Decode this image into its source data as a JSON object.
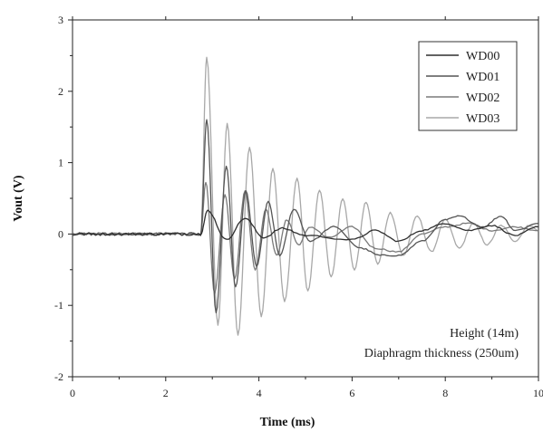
{
  "chart_data": {
    "type": "line",
    "title": "",
    "xlabel": "Time (ms)",
    "ylabel": "Vout (V)",
    "xlim": [
      0,
      10
    ],
    "ylim": [
      -2,
      3
    ],
    "xticks": [
      "0",
      "2",
      "4",
      "6",
      "8",
      "10"
    ],
    "yticks": [
      "-2",
      "-1",
      "0",
      "1",
      "2",
      "3"
    ],
    "grid": false,
    "legend_position": "top-right",
    "series": [
      {
        "name": "WD00",
        "color": "#2f2f2f",
        "peaks": [
          [
            2.9,
            0.33
          ],
          [
            3.3,
            -0.08
          ],
          [
            3.7,
            0.22
          ],
          [
            4.1,
            -0.05
          ],
          [
            4.5,
            0.08
          ],
          [
            5.0,
            -0.02
          ],
          [
            6.0,
            -0.08
          ],
          [
            6.5,
            0.05
          ],
          [
            7.0,
            -0.1
          ],
          [
            7.5,
            0.05
          ],
          [
            8.0,
            0.15
          ],
          [
            8.5,
            0.05
          ],
          [
            9.0,
            0.12
          ],
          [
            9.5,
            -0.02
          ],
          [
            10.0,
            0.1
          ]
        ]
      },
      {
        "name": "WD01",
        "color": "#555555",
        "peaks": [
          [
            2.88,
            1.6
          ],
          [
            3.08,
            -1.1
          ],
          [
            3.3,
            0.95
          ],
          [
            3.5,
            -0.75
          ],
          [
            3.72,
            0.6
          ],
          [
            3.95,
            -0.45
          ],
          [
            4.2,
            0.45
          ],
          [
            4.45,
            -0.3
          ],
          [
            4.75,
            0.35
          ],
          [
            5.1,
            -0.1
          ],
          [
            5.6,
            0.1
          ],
          [
            6.2,
            -0.2
          ],
          [
            6.6,
            -0.3
          ],
          [
            7.0,
            -0.3
          ],
          [
            7.5,
            -0.1
          ],
          [
            8.0,
            0.2
          ],
          [
            8.3,
            0.25
          ],
          [
            8.8,
            0.1
          ],
          [
            9.2,
            0.25
          ],
          [
            9.5,
            0.05
          ],
          [
            10.0,
            0.15
          ]
        ]
      },
      {
        "name": "WD02",
        "color": "#7a7a7a",
        "peaks": [
          [
            2.86,
            0.72
          ],
          [
            3.05,
            -0.82
          ],
          [
            3.27,
            0.55
          ],
          [
            3.48,
            -0.62
          ],
          [
            3.7,
            0.6
          ],
          [
            3.92,
            -0.5
          ],
          [
            4.15,
            0.35
          ],
          [
            4.38,
            -0.3
          ],
          [
            4.6,
            0.2
          ],
          [
            4.85,
            -0.15
          ],
          [
            5.1,
            0.1
          ],
          [
            5.5,
            -0.05
          ],
          [
            6.0,
            0.1
          ],
          [
            6.5,
            -0.2
          ],
          [
            7.0,
            -0.25
          ],
          [
            7.5,
            0.0
          ],
          [
            8.0,
            0.1
          ],
          [
            8.5,
            0.15
          ],
          [
            9.0,
            0.05
          ],
          [
            9.5,
            0.1
          ],
          [
            10.0,
            0.05
          ]
        ]
      },
      {
        "name": "WD03",
        "color": "#a8a8a8",
        "peaks": [
          [
            2.88,
            2.48
          ],
          [
            3.12,
            -1.28
          ],
          [
            3.32,
            1.55
          ],
          [
            3.55,
            -1.42
          ],
          [
            3.8,
            1.22
          ],
          [
            4.05,
            -1.15
          ],
          [
            4.3,
            0.92
          ],
          [
            4.55,
            -0.95
          ],
          [
            4.82,
            0.78
          ],
          [
            5.05,
            -0.8
          ],
          [
            5.3,
            0.62
          ],
          [
            5.55,
            -0.6
          ],
          [
            5.8,
            0.5
          ],
          [
            6.05,
            -0.5
          ],
          [
            6.3,
            0.45
          ],
          [
            6.55,
            -0.42
          ],
          [
            6.82,
            0.3
          ],
          [
            7.1,
            -0.3
          ],
          [
            7.4,
            0.25
          ],
          [
            7.7,
            -0.25
          ],
          [
            8.0,
            0.2
          ],
          [
            8.3,
            -0.2
          ],
          [
            8.6,
            0.15
          ],
          [
            8.9,
            -0.15
          ],
          [
            9.2,
            0.12
          ],
          [
            9.5,
            -0.1
          ],
          [
            9.8,
            0.12
          ],
          [
            10.0,
            0.05
          ]
        ]
      }
    ],
    "onset_time": 2.75,
    "annotations": [
      "Height (14m)",
      "Diaphragm thickness (250um)"
    ]
  }
}
